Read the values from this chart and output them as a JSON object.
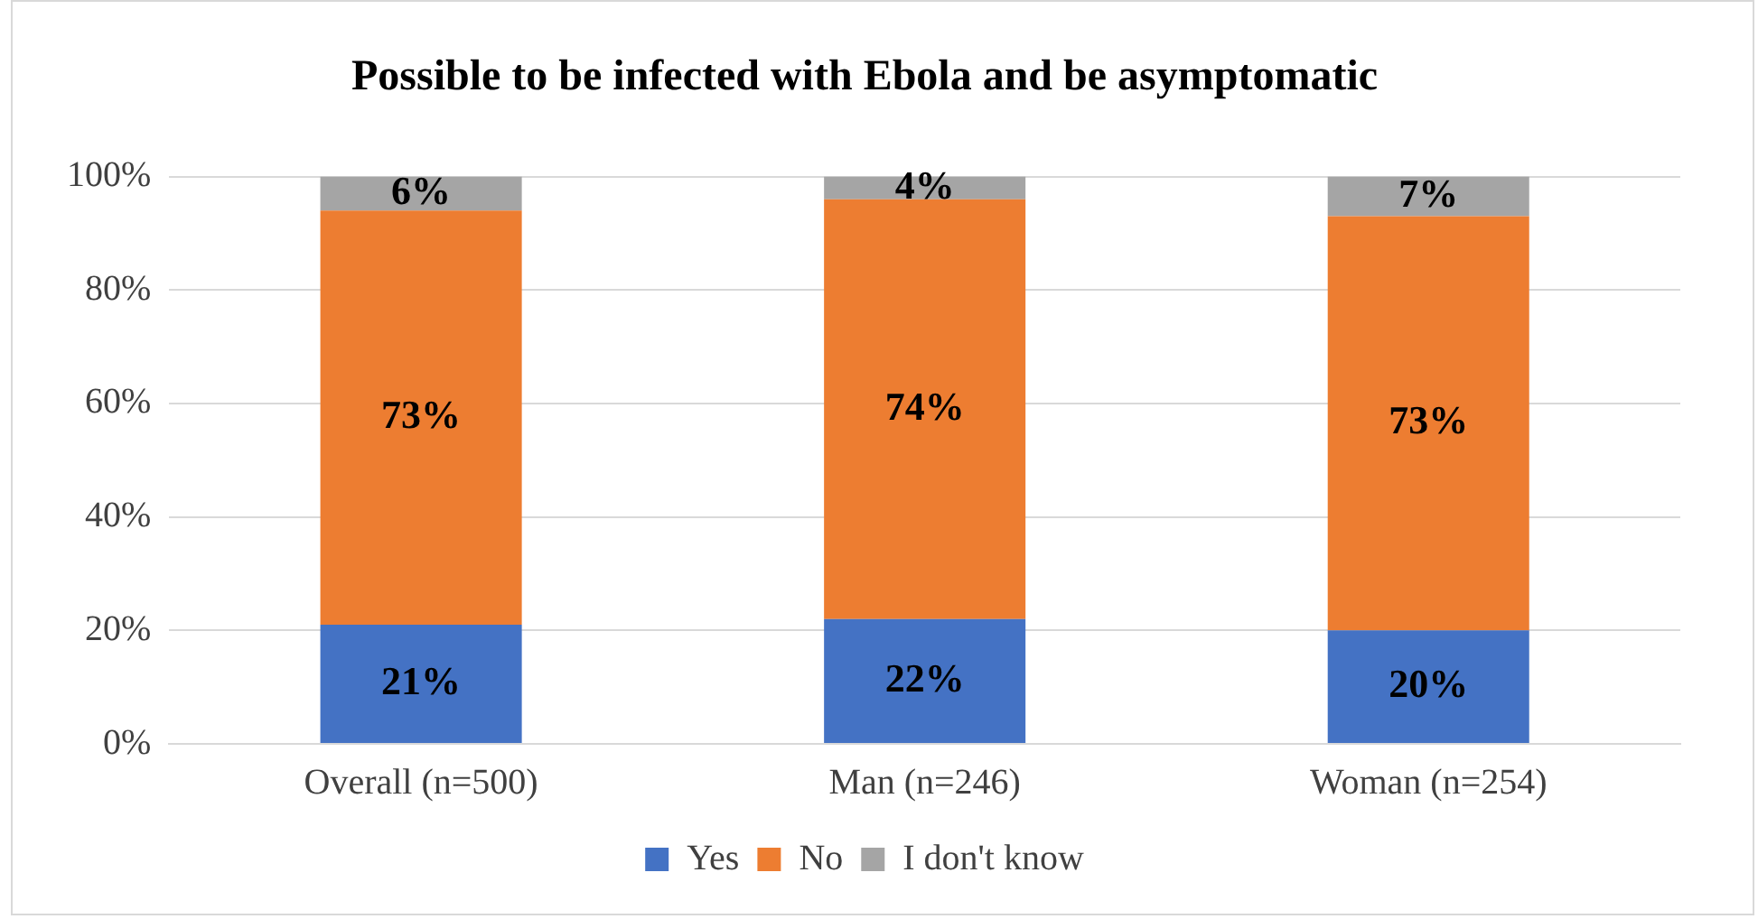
{
  "chart_data": {
    "type": "bar",
    "title": "Possible to be infected with Ebola and be asymptomatic",
    "categories": [
      "Overall (n=500)",
      "Man (n=246)",
      "Woman (n=254)"
    ],
    "stacked": true,
    "series": [
      {
        "name": "Yes",
        "color": "#4472c4",
        "values": [
          21,
          22,
          20
        ],
        "value_labels": [
          "21%",
          "22%",
          "20%"
        ]
      },
      {
        "name": "No",
        "color": "#ed7d31",
        "values": [
          73,
          74,
          73
        ],
        "value_labels": [
          "73%",
          "74%",
          "73%"
        ]
      },
      {
        "name": "I don't know",
        "color": "#a5a5a5",
        "values": [
          6,
          4,
          7
        ],
        "value_labels": [
          "6%",
          "4%",
          "7%"
        ]
      }
    ],
    "ylim": [
      0,
      100
    ],
    "yticks": [
      {
        "value": 0,
        "label": "0%"
      },
      {
        "value": 20,
        "label": "20%"
      },
      {
        "value": 40,
        "label": "40%"
      },
      {
        "value": 60,
        "label": "60%"
      },
      {
        "value": 80,
        "label": "80%"
      },
      {
        "value": 100,
        "label": "100%"
      }
    ],
    "grid": "y",
    "legend": "bottom"
  }
}
